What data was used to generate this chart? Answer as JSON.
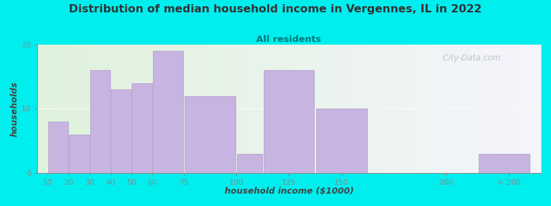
{
  "title": "Distribution of median household income in Vergennes, IL in 2022",
  "subtitle": "All residents",
  "xlabel": "household income ($1000)",
  "ylabel": "households",
  "background_outer": "#00EEEE",
  "background_inner_left": "#dff2dc",
  "background_inner_right": "#f5f5fc",
  "bar_color": "#c8b4e0",
  "bar_edge_color": "#b09cc8",
  "watermark": " City-Data.com",
  "ylim": [
    0,
    20
  ],
  "yticks": [
    0,
    10,
    20
  ],
  "title_color": "#333333",
  "subtitle_color": "#007777",
  "xlabel_color": "#444444",
  "ylabel_color": "#444444",
  "title_fontsize": 11.5,
  "subtitle_fontsize": 9.5,
  "axis_label_fontsize": 9,
  "tick_fontsize": 8,
  "categories": [
    "10",
    "20",
    "30",
    "40",
    "50",
    "60",
    "75",
    "100",
    "125",
    "150",
    "200",
    "> 200"
  ],
  "values": [
    8,
    6,
    16,
    13,
    14,
    19,
    12,
    3,
    16,
    10,
    0,
    3
  ],
  "left_edges": [
    10,
    20,
    30,
    40,
    50,
    60,
    75,
    100,
    112.5,
    137.5,
    175,
    215
  ],
  "bwidths": [
    10,
    10,
    10,
    10,
    10,
    15,
    25,
    12.5,
    25,
    25,
    25,
    25
  ],
  "xtick_positions": [
    10,
    20,
    30,
    40,
    50,
    60,
    75,
    100,
    125,
    150,
    200,
    230
  ],
  "xtick_labels": [
    "10",
    "20",
    "30",
    "40",
    "50",
    "60",
    "75",
    "100",
    "125",
    "150",
    "200",
    "> 200"
  ],
  "xlim": [
    5,
    245
  ]
}
